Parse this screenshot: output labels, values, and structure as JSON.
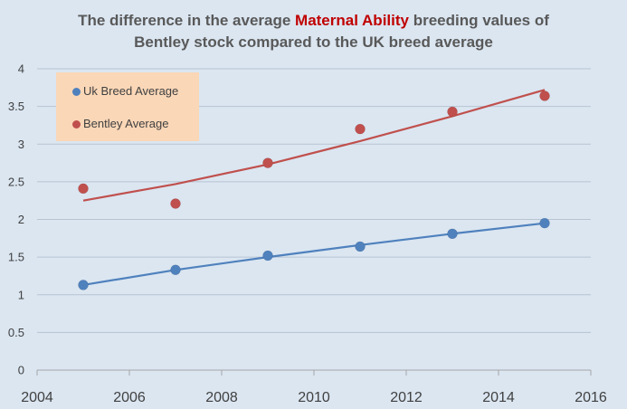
{
  "chart_data": {
    "type": "scatter",
    "title_parts": [
      {
        "text": "The difference in the average ",
        "highlight": false
      },
      {
        "text": "Maternal Ability",
        "highlight": true
      },
      {
        "text": " breeding values of",
        "highlight": false
      }
    ],
    "title_line2": "Bentley stock compared to the UK breed average",
    "xlim": [
      2004,
      2016
    ],
    "ylim": [
      0,
      4
    ],
    "x_ticks": [
      2004,
      2006,
      2008,
      2010,
      2012,
      2014,
      2016
    ],
    "y_ticks": [
      0,
      0.5,
      1,
      1.5,
      2,
      2.5,
      3,
      3.5,
      4
    ],
    "grid": "horizontal",
    "legend_position": "top-left",
    "series": [
      {
        "name": "Uk Breed Average",
        "color": "#4f81bd",
        "trend_color": "#4f81bd",
        "x": [
          2005,
          2007,
          2009,
          2011,
          2013,
          2015
        ],
        "y": [
          1.13,
          1.33,
          1.52,
          1.64,
          1.81,
          1.95
        ],
        "trendline": {
          "type": "polynomial",
          "x": [
            2005,
            2007,
            2009,
            2011,
            2013,
            2015
          ],
          "y": [
            1.13,
            1.33,
            1.5,
            1.66,
            1.81,
            1.95
          ]
        }
      },
      {
        "name": "Bentley Average",
        "color": "#c0504d",
        "trend_color": "#c0504d",
        "x": [
          2005,
          2007,
          2009,
          2011,
          2013,
          2015
        ],
        "y": [
          2.41,
          2.21,
          2.75,
          3.2,
          3.43,
          3.64
        ],
        "trendline": {
          "type": "polynomial",
          "x": [
            2005,
            2007,
            2009,
            2011,
            2013,
            2015
          ],
          "y": [
            2.25,
            2.47,
            2.73,
            3.04,
            3.37,
            3.72
          ]
        }
      }
    ]
  }
}
